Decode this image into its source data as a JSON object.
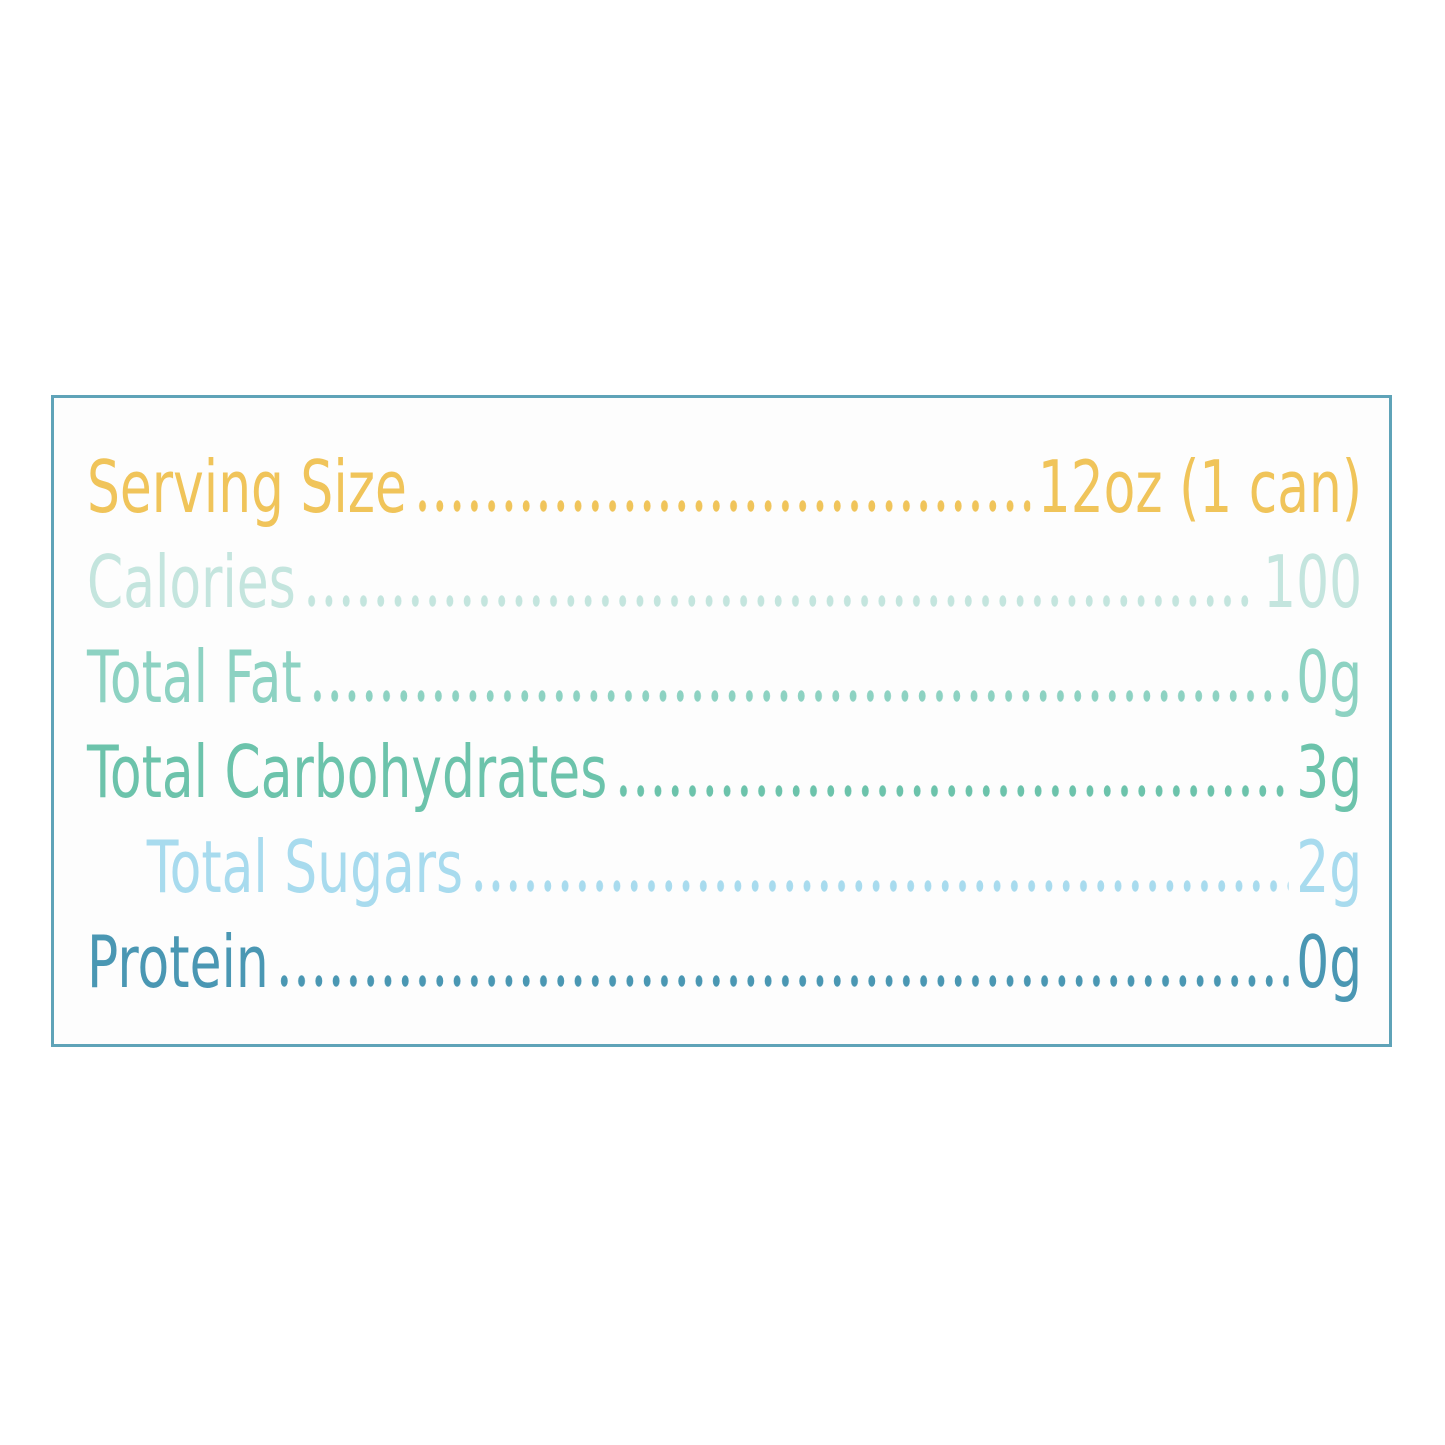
{
  "nutrition": {
    "border_color": "#5fa3b8",
    "rows": [
      {
        "label": "Serving Size",
        "value": "12oz (1 can)",
        "color": "#f0c45a",
        "indent": false
      },
      {
        "label": "Calories",
        "value": "100",
        "color": "#c4e5de",
        "indent": false
      },
      {
        "label": "Total Fat",
        "value": "0g",
        "color": "#8dd2c2",
        "indent": false
      },
      {
        "label": "Total Carbohydrates",
        "value": "3g",
        "color": "#6cc3ab",
        "indent": false
      },
      {
        "label": "Total Sugars",
        "value": "2g",
        "color": "#a8dbee",
        "indent": true
      },
      {
        "label": "Protein",
        "value": "0g",
        "color": "#4a97b3",
        "indent": false
      }
    ]
  }
}
